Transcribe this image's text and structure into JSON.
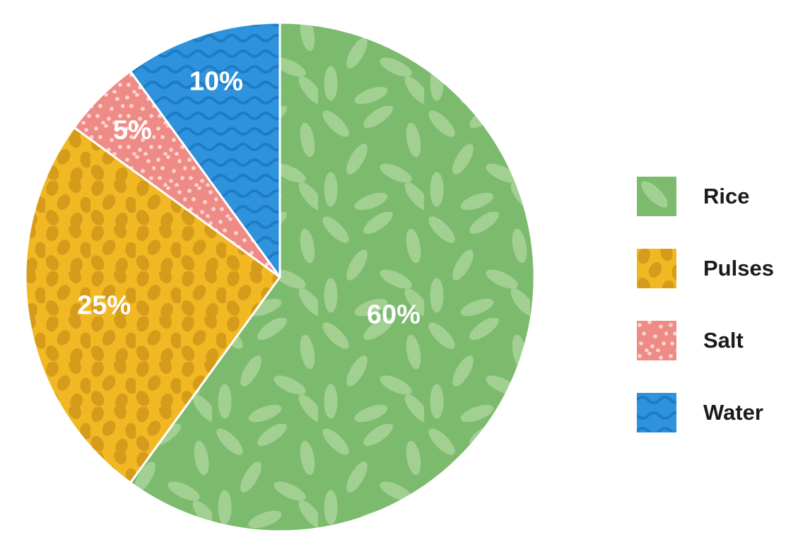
{
  "page": {
    "background": "#ffffff"
  },
  "chart_data": {
    "type": "pie",
    "title": "",
    "direction": "clockwise",
    "start_angle_deg": 0,
    "legend_position": "right",
    "label_color": "#ffffff",
    "slices": [
      {
        "label": "Rice",
        "value": 60,
        "display": "60%",
        "color": "#7cbb6d",
        "pattern_color": "#a2cf92",
        "pattern": "rice-grains"
      },
      {
        "label": "Pulses",
        "value": 25,
        "display": "25%",
        "color": "#f2b824",
        "pattern_color": "#d59c1b",
        "pattern": "oval-dots"
      },
      {
        "label": "Salt",
        "value": 5,
        "display": "5%",
        "color": "#ef8b87",
        "pattern_color": "#fad4cd",
        "pattern": "speckles"
      },
      {
        "label": "Water",
        "value": 10,
        "display": "10%",
        "color": "#2e93dc",
        "pattern_color": "#1e7cc7",
        "pattern": "waves"
      }
    ]
  }
}
